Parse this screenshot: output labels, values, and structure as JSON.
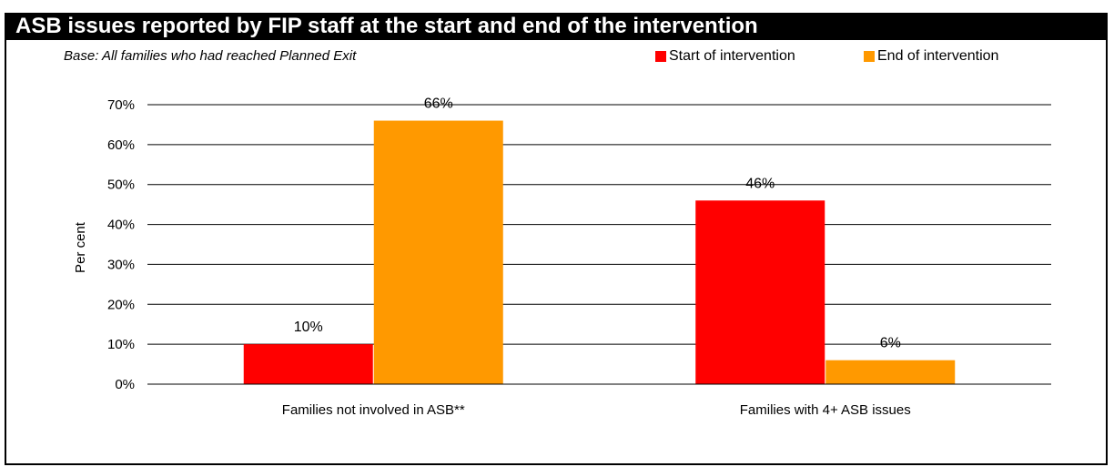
{
  "header": {
    "title": "ASB issues reported by FIP staff at the start and end of the intervention",
    "subtitle": "Base: All families who had reached Planned Exit"
  },
  "legend": [
    {
      "label": "Start of intervention",
      "color": "#ff0000"
    },
    {
      "label": "End of intervention",
      "color": "#ff9900"
    }
  ],
  "chart_data": {
    "type": "bar",
    "title": "ASB issues reported by FIP staff at the start and end of the intervention",
    "subtitle": "Base: All families who had reached Planned Exit",
    "xlabel": "",
    "ylabel": "Per cent",
    "ylim": [
      0,
      70
    ],
    "yticks": [
      "0%",
      "10%",
      "20%",
      "30%",
      "40%",
      "50%",
      "60%",
      "70%"
    ],
    "grid": true,
    "legend_position": "top-right",
    "categories": [
      "Families not involved in ASB**",
      "Families with 4+ ASB issues"
    ],
    "series": [
      {
        "name": "Start of intervention",
        "color": "#ff0000",
        "values": [
          10,
          46
        ],
        "labels": [
          "10%",
          "46%"
        ]
      },
      {
        "name": "End of intervention",
        "color": "#ff9900",
        "values": [
          66,
          6
        ],
        "labels": [
          "66%",
          "6%"
        ]
      }
    ]
  }
}
